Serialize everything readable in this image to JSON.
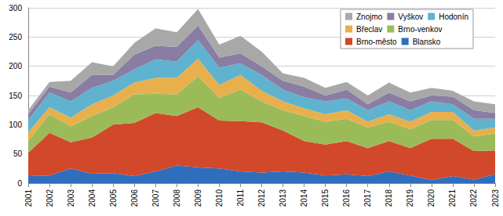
{
  "chart_data": {
    "type": "area",
    "stacked": true,
    "grid": true,
    "legend": "top-right",
    "categories": [
      "2001",
      "2002",
      "2003",
      "2004",
      "2005",
      "2006",
      "2007",
      "2008",
      "2009",
      "2010",
      "2011",
      "2012",
      "2013",
      "2014",
      "2015",
      "2016",
      "2017",
      "2018",
      "2019",
      "2020",
      "2021",
      "2022",
      "2023"
    ],
    "ylim": [
      0,
      300
    ],
    "yticks": [
      0,
      50,
      100,
      150,
      200,
      250,
      300
    ],
    "series": [
      {
        "name": "Blansko",
        "color": "#2f6ebd",
        "values": [
          12,
          13,
          25,
          16,
          17,
          12,
          20,
          30,
          27,
          25,
          20,
          18,
          20,
          18,
          13,
          15,
          12,
          20,
          13,
          5,
          12,
          6,
          15
        ]
      },
      {
        "name": "Brno-město",
        "color": "#d2482a",
        "values": [
          40,
          73,
          45,
          62,
          83,
          91,
          100,
          85,
          103,
          82,
          86,
          86,
          70,
          54,
          53,
          57,
          48,
          52,
          47,
          71,
          64,
          49,
          41
        ]
      },
      {
        "name": "Brno-venkov",
        "color": "#9bbb59",
        "values": [
          20,
          32,
          27,
          37,
          30,
          49,
          33,
          37,
          53,
          39,
          54,
          36,
          35,
          43,
          39,
          38,
          35,
          33,
          32,
          32,
          32,
          25,
          29
        ]
      },
      {
        "name": "Břeclav",
        "color": "#e8b04c",
        "values": [
          15,
          12,
          15,
          20,
          20,
          20,
          27,
          28,
          30,
          22,
          25,
          18,
          15,
          13,
          13,
          15,
          10,
          13,
          13,
          14,
          14,
          10,
          10
        ]
      },
      {
        "name": "Hodonín",
        "color": "#5fb3cf",
        "values": [
          21,
          25,
          28,
          28,
          25,
          23,
          32,
          28,
          32,
          30,
          20,
          27,
          20,
          19,
          22,
          20,
          20,
          22,
          20,
          18,
          13,
          20,
          15
        ]
      },
      {
        "name": "Vyškov",
        "color": "#8a7da3",
        "values": [
          10,
          10,
          15,
          22,
          10,
          25,
          23,
          25,
          25,
          17,
          17,
          15,
          15,
          18,
          10,
          15,
          10,
          15,
          15,
          10,
          13,
          15,
          10
        ]
      },
      {
        "name": "Znojmo",
        "color": "#a8a8a8",
        "values": [
          7,
          8,
          20,
          22,
          15,
          20,
          30,
          25,
          28,
          22,
          30,
          25,
          13,
          15,
          13,
          13,
          15,
          17,
          15,
          13,
          10,
          15,
          15
        ]
      }
    ]
  }
}
